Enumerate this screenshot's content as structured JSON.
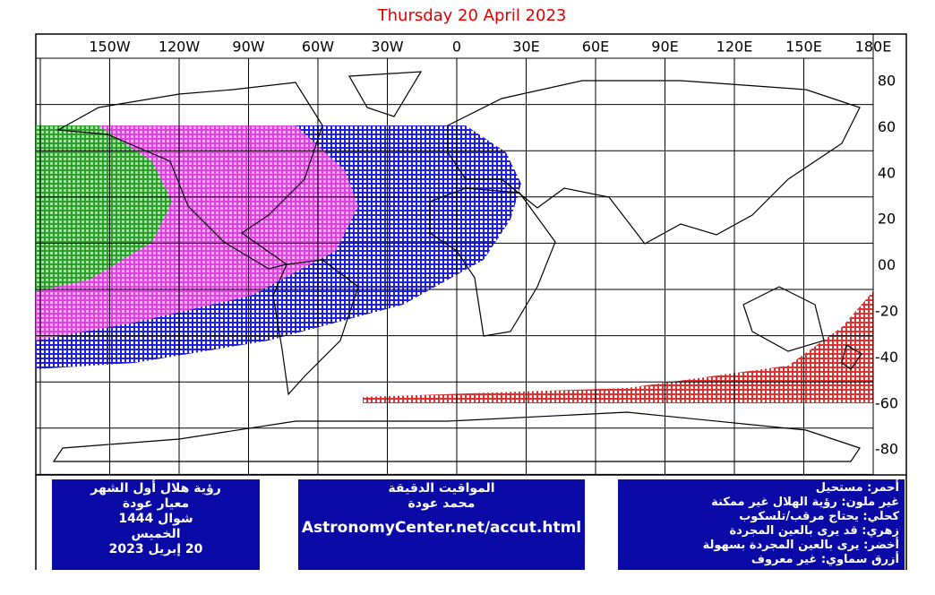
{
  "title": "Thursday 20 April 2023",
  "lon_labels": [
    "150W",
    "120W",
    "90W",
    "60W",
    "30W",
    "0",
    "30E",
    "60E",
    "90E",
    "120E",
    "150E",
    "180E"
  ],
  "lat_labels": [
    "80",
    "60",
    "40",
    "20",
    "00",
    "-20",
    "-40",
    "-60",
    "-80"
  ],
  "box_left": {
    "lines": [
      "رؤية هلال أول الشهر",
      "معيار عودة",
      "شوال 1444",
      "الخميس",
      "20 إبريل 2023"
    ]
  },
  "box_middle": {
    "lines": [
      "المواقيت الدقيقة",
      "محمد عودة"
    ],
    "url": "AstronomyCenter.net/accut.html"
  },
  "box_right": {
    "lines": [
      "أحمر: مستحيل",
      "غير ملون: رؤية الهلال غير ممكنة",
      "كحلي: يحتاج مرقب/تلسكوب",
      "زهري: قد يرى بالعين المجردة",
      "أخضر: يرى بالعين المجردة بسهولة",
      "أزرق سماوي: غير معروف"
    ]
  }
}
